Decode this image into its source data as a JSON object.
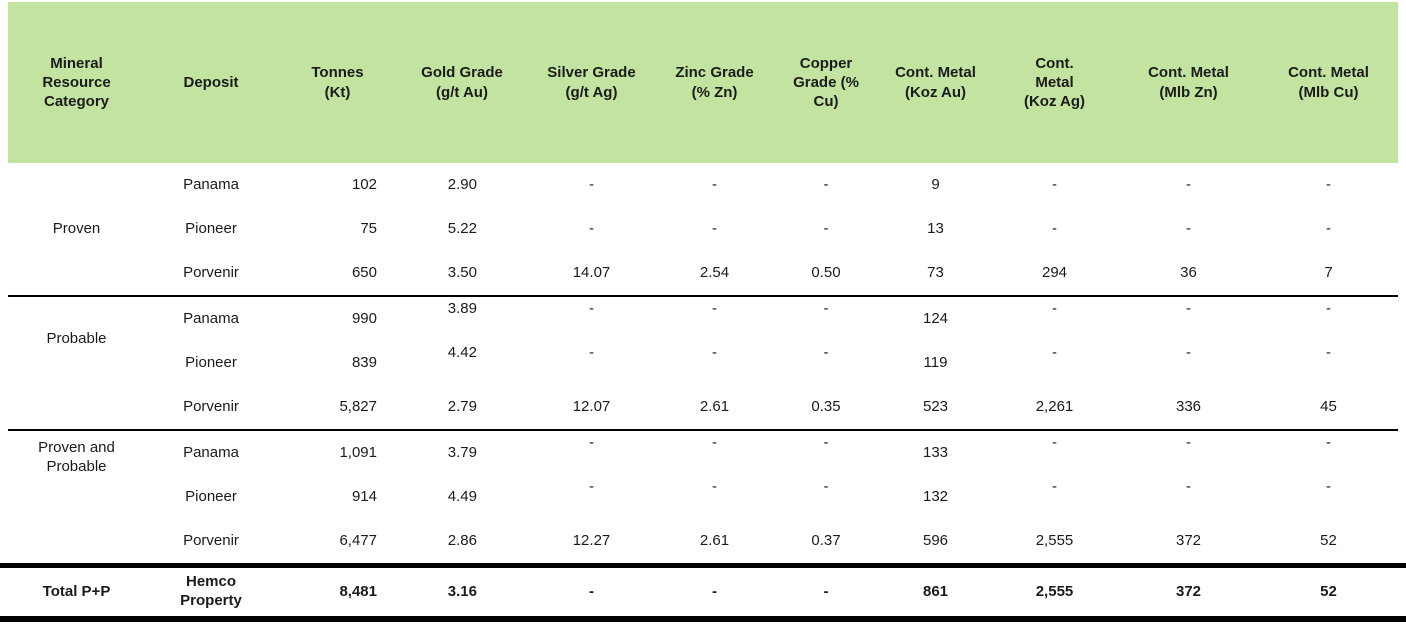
{
  "colors": {
    "header_bg": "#c3e4a0",
    "rule": "#000000",
    "text": "#1b1b1b"
  },
  "table": {
    "columns": [
      "Mineral Resource Category",
      "Deposit",
      "Tonnes (Kt)",
      "Gold Grade (g/t Au)",
      "Silver Grade (g/t Ag)",
      "Zinc Grade (% Zn)",
      "Copper Grade (% Cu)",
      "Cont. Metal (Koz Au)",
      "Cont. Metal (Koz Ag)",
      "Cont. Metal (Mlb Zn)",
      "Cont. Metal (Mlb Cu)"
    ],
    "sections": [
      {
        "category": "Proven",
        "rows": [
          {
            "deposit": "Panama",
            "values": [
              "102",
              "2.90",
              "-",
              "-",
              "-",
              "9",
              "-",
              "-",
              "-"
            ]
          },
          {
            "deposit": "Pioneer",
            "values": [
              "75",
              "5.22",
              "-",
              "-",
              "-",
              "13",
              "-",
              "-",
              "-"
            ]
          },
          {
            "deposit": "Porvenir",
            "values": [
              "650",
              "3.50",
              "14.07",
              "2.54",
              "0.50",
              "73",
              "294",
              "36",
              "7"
            ]
          }
        ]
      },
      {
        "category": "Probable",
        "rows": [
          {
            "deposit": "Panama",
            "values": [
              "990",
              "3.89",
              "-",
              "-",
              "-",
              "124",
              "-",
              "-",
              "-"
            ]
          },
          {
            "deposit": "Pioneer",
            "values": [
              "839",
              "4.42",
              "-",
              "-",
              "-",
              "119",
              "-",
              "-",
              "-"
            ]
          },
          {
            "deposit": "Porvenir",
            "values": [
              "5,827",
              "2.79",
              "12.07",
              "2.61",
              "0.35",
              "523",
              "2,261",
              "336",
              "45"
            ]
          }
        ]
      },
      {
        "category": "Proven and Probable",
        "rows": [
          {
            "deposit": "Panama",
            "values": [
              "1,091",
              "3.79",
              "-",
              "-",
              "-",
              "133",
              "-",
              "-",
              "-"
            ]
          },
          {
            "deposit": "Pioneer",
            "values": [
              "914",
              "4.49",
              "-",
              "-",
              "-",
              "132",
              "-",
              "-",
              "-"
            ]
          },
          {
            "deposit": "Porvenir",
            "values": [
              "6,477",
              "2.86",
              "12.27",
              "2.61",
              "0.37",
              "596",
              "2,555",
              "372",
              "52"
            ]
          }
        ]
      }
    ],
    "total": {
      "category": "Total P+P",
      "deposit": "Hemco Property",
      "values": [
        "8,481",
        "3.16",
        "-",
        "-",
        "-",
        "861",
        "2,555",
        "372",
        "52"
      ]
    }
  }
}
